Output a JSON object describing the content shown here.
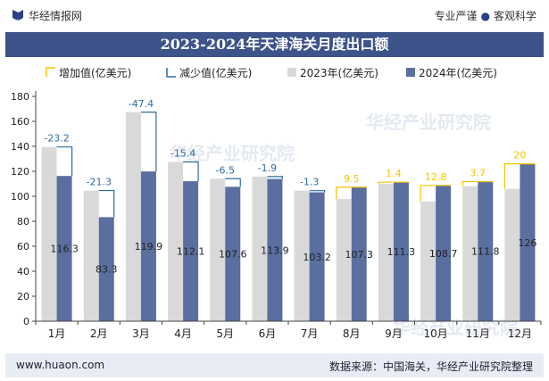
{
  "header": {
    "brand": "华经情报网",
    "tagline_left": "专业严谨",
    "tagline_right": "客观科学"
  },
  "footer": {
    "site": "www.huaon.com",
    "source": "数据来源：中国海关，华经产业研究院整理"
  },
  "watermark": "华经产业研究院",
  "colors": {
    "y2023": "#d9d9d9",
    "y2024": "#5a6fa0",
    "increase": "#f5c400",
    "decrease": "#2e6b9e",
    "title_bg": "#3d5389"
  },
  "chart_data": {
    "type": "bar",
    "title": "2023-2024年天津海关月度出口额",
    "categories": [
      "1月",
      "2月",
      "3月",
      "4月",
      "5月",
      "6月",
      "7月",
      "8月",
      "9月",
      "10月",
      "11月",
      "12月"
    ],
    "series": [
      {
        "name": "2023年(亿美元)",
        "values": [
          139.5,
          104.6,
          167.3,
          127.5,
          114.1,
          115.8,
          104.5,
          97.8,
          109.9,
          95.9,
          108.1,
          106.0
        ]
      },
      {
        "name": "2024年(亿美元)",
        "values": [
          116.3,
          83.3,
          119.9,
          112.1,
          107.6,
          113.9,
          103.2,
          107.3,
          111.3,
          108.7,
          111.8,
          126.0
        ]
      }
    ],
    "change_labels": [
      "-23.2",
      "-21.3",
      "-47.4",
      "-15.4",
      "-6.5",
      "-1.9",
      "-1.3",
      "9.5",
      "1.4",
      "12.8",
      "3.7",
      "20"
    ],
    "change_types": [
      "decrease",
      "decrease",
      "decrease",
      "decrease",
      "decrease",
      "decrease",
      "decrease",
      "increase",
      "increase",
      "increase",
      "increase",
      "increase"
    ],
    "bar_labels": [
      "116.3",
      "83.3",
      "119.9",
      "112.1",
      "107.6",
      "113.9",
      "103.2",
      "107.3",
      "111.3",
      "108.7",
      "111.8",
      "126"
    ],
    "legend": [
      "增加值(亿美元)",
      "减少值(亿美元)",
      "2023年(亿美元)",
      "2024年(亿美元)"
    ],
    "legend_position": "top",
    "ylim": [
      0,
      180
    ],
    "yticks": [
      0,
      20,
      40,
      60,
      80,
      100,
      120,
      140,
      160,
      180
    ],
    "grid": false
  }
}
